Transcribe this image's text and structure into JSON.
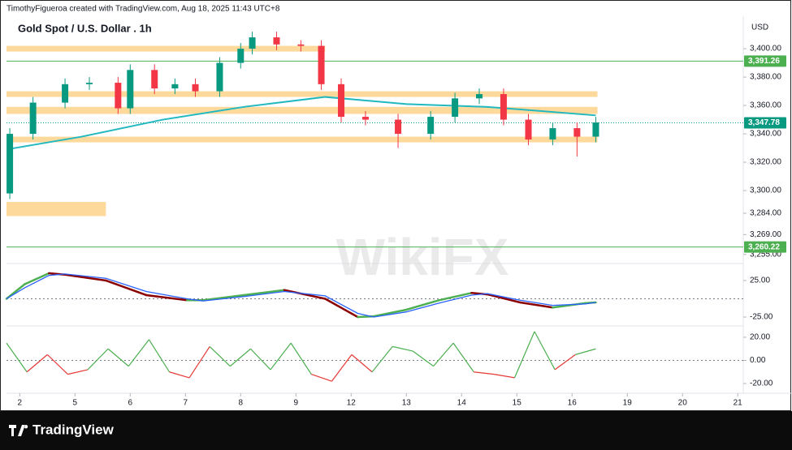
{
  "header": "TimothyFigueroa created with TradingView.com, Aug 18, 2025 11:43 UTC+8",
  "watermark": "WikiFX",
  "footer": "TradingView",
  "chart_data": [
    {
      "type": "candlestick",
      "title": "Gold Spot / U.S. Dollar . 1h",
      "currency": "USD",
      "x": [
        -0.18,
        0.24,
        0.82,
        1.26,
        1.78,
        2.0,
        2.44,
        2.81,
        3.18,
        3.62,
        4.0,
        4.21,
        4.65,
        5.09,
        5.46,
        5.82,
        6.26,
        6.85,
        7.44,
        7.88,
        8.32,
        8.76,
        9.21,
        9.65,
        10.09,
        10.43
      ],
      "open": [
        3298,
        3340,
        3362,
        3375,
        3376,
        3358,
        3385,
        3372,
        3375,
        3370,
        3390,
        3400,
        3408,
        3403,
        3402,
        3375,
        3352,
        3350,
        3340,
        3352,
        3365,
        3368,
        3350,
        3336,
        3344,
        3338
      ],
      "high": [
        3344,
        3366,
        3379,
        3380,
        3380,
        3389,
        3389,
        3379,
        3379,
        3394,
        3404,
        3412,
        3412,
        3406,
        3406,
        3379,
        3356,
        3354,
        3356,
        3369,
        3372,
        3372,
        3354,
        3348,
        3348,
        3352
      ],
      "low": [
        3294,
        3336,
        3358,
        3371,
        3354,
        3354,
        3368,
        3368,
        3366,
        3366,
        3386,
        3396,
        3399,
        3398,
        3371,
        3348,
        3346,
        3330,
        3336,
        3348,
        3361,
        3346,
        3332,
        3332,
        3324,
        3334
      ],
      "close": [
        3340,
        3362,
        3375,
        3376,
        3358,
        3385,
        3372,
        3375,
        3370,
        3390,
        3400,
        3408,
        3403,
        3402,
        3375,
        3352,
        3350,
        3340,
        3352,
        3365,
        3368,
        3350,
        3336,
        3344,
        3338,
        3348
      ],
      "up_color": "#089981",
      "down_color": "#f23645",
      "moving_average": {
        "color": "#22b8c0",
        "x": [
          -0.24,
          1.12,
          2.59,
          4.06,
          5.53,
          7.0,
          8.47,
          10.43
        ],
        "values": [
          3329,
          3338,
          3350,
          3359,
          3366,
          3361,
          3359,
          3353
        ]
      },
      "zones": {
        "color": "#fdd38a",
        "items": [
          {
            "from": 3398,
            "to": 3402,
            "x_end": 5.53
          },
          {
            "from": 3366,
            "to": 3370,
            "x_end": 10.46
          },
          {
            "from": 3354,
            "to": 3359,
            "x_end": 10.46
          },
          {
            "from": 3334,
            "to": 3338,
            "x_end": 10.46
          },
          {
            "from": 3282,
            "to": 3292,
            "x_end": 1.56
          }
        ]
      },
      "price_lines": [
        {
          "value": 3391.26,
          "value_label": "3,391.26",
          "color": "#4caf50",
          "style": "solid"
        },
        {
          "value": 3347.78,
          "value_label": "3,347.78",
          "color": "#089981",
          "style": "dotted"
        },
        {
          "value": 3260.22,
          "value_label": "3,260.22",
          "color": "#4caf50",
          "style": "solid"
        }
      ],
      "ylim": [
        3248.6,
        3422.9
      ],
      "yticks": [
        {
          "value": 3400,
          "label": "3,400.00"
        },
        {
          "value": 3380,
          "label": "3,380.00"
        },
        {
          "value": 3360,
          "label": "3,360.00"
        },
        {
          "value": 3340,
          "label": "3,340.00"
        },
        {
          "value": 3320,
          "label": "3,320.00"
        },
        {
          "value": 3300,
          "label": "3,300.00"
        },
        {
          "value": 3284,
          "label": "3,284.00"
        },
        {
          "value": 3269,
          "label": "3,269.00"
        },
        {
          "value": 3255,
          "label": "3,255.00"
        }
      ],
      "xlim": [
        -0.24,
        13.1
      ],
      "xticks": [
        {
          "value": 0,
          "label": "2"
        },
        {
          "value": 1,
          "label": "5"
        },
        {
          "value": 2,
          "label": "6"
        },
        {
          "value": 3,
          "label": "7"
        },
        {
          "value": 4,
          "label": "8"
        },
        {
          "value": 5,
          "label": "9"
        },
        {
          "value": 6,
          "label": "12"
        },
        {
          "value": 7,
          "label": "13"
        },
        {
          "value": 8,
          "label": "14"
        },
        {
          "value": 9,
          "label": "15"
        },
        {
          "value": 10,
          "label": "16"
        },
        {
          "value": 11,
          "label": "19"
        },
        {
          "value": 12,
          "label": "20"
        },
        {
          "value": 13,
          "label": "21"
        }
      ]
    },
    {
      "type": "line",
      "up_color": "#4caf50",
      "down_color": "#8b0000",
      "series": [
        {
          "color": "#4caf50",
          "x": [
            -0.24,
            0.09,
            0.53,
            0.82,
            1.56,
            2.29,
            3.03,
            3.32,
            4.06,
            4.79,
            5.53,
            6.12,
            6.41,
            7.0,
            7.59,
            8.18,
            8.47,
            9.06,
            9.65,
            10.24,
            10.43
          ],
          "values": [
            0,
            20,
            35,
            33,
            25,
            5,
            -2,
            -2,
            5,
            12,
            0,
            -25,
            -24,
            -15,
            -2,
            8,
            6,
            -5,
            -12,
            -6,
            -5
          ]
        },
        {
          "color": "#2962ff",
          "x": [
            -0.24,
            0.09,
            0.53,
            0.82,
            1.56,
            2.29,
            3.03,
            3.32,
            4.06,
            4.79,
            5.53,
            6.12,
            6.41,
            7.0,
            7.59,
            8.18,
            8.47,
            9.06,
            9.65,
            10.24,
            10.43
          ],
          "values": [
            0,
            15,
            32,
            34,
            28,
            10,
            0,
            -3,
            3,
            10,
            4,
            -20,
            -25,
            -18,
            -6,
            5,
            7,
            -2,
            -9,
            -7,
            -5
          ]
        }
      ],
      "ylim": [
        -35,
        48.3
      ],
      "yticks": [
        {
          "value": 25,
          "label": "25.00"
        },
        {
          "value": -25,
          "label": "-25.00"
        }
      ],
      "xlim": [
        -0.24,
        13.1
      ]
    },
    {
      "type": "oscillator",
      "up_color": "#4caf50",
      "down_color": "#e53935",
      "series": [
        {
          "x": [
            -0.24,
            0.13,
            0.5,
            0.87,
            1.23,
            1.6,
            1.97,
            2.34,
            2.71,
            3.07,
            3.44,
            3.81,
            4.18,
            4.54,
            4.91,
            5.28,
            5.65,
            6.01,
            6.38,
            6.75,
            7.12,
            7.49,
            7.85,
            8.22,
            8.59,
            8.96,
            9.32,
            9.69,
            10.06,
            10.43
          ],
          "values": [
            15,
            -10,
            5,
            -12,
            -8,
            10,
            -5,
            18,
            -10,
            -15,
            12,
            -5,
            10,
            -8,
            15,
            -12,
            -18,
            5,
            -10,
            12,
            8,
            -5,
            15,
            -10,
            -12,
            -15,
            25,
            -8,
            5,
            10
          ]
        }
      ],
      "ylim": [
        -28.4,
        27.7
      ],
      "yticks": [
        {
          "value": 20,
          "label": "20.00"
        },
        {
          "value": 0,
          "label": "0.00"
        },
        {
          "value": -20,
          "label": "-20.00"
        }
      ],
      "xlim": [
        -0.24,
        13.1
      ]
    }
  ]
}
